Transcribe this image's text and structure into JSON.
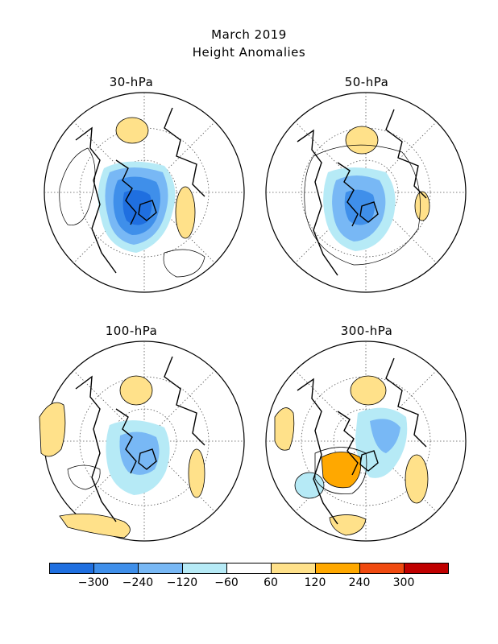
{
  "title": {
    "line1": "March 2019",
    "line2": "Height Anomalies"
  },
  "panels": [
    {
      "label": "30-hPa"
    },
    {
      "label": "50-hPa"
    },
    {
      "label": "100-hPa"
    },
    {
      "label": "300-hPa"
    }
  ],
  "colorbar": {
    "colors": [
      "#1f6fe0",
      "#3f8fea",
      "#78b8f5",
      "#b6eaf6",
      "#ffffff",
      "#ffe18a",
      "#ffa800",
      "#f04a10",
      "#c00000"
    ],
    "labels": [
      "-300",
      "-240",
      "-120",
      "-60",
      "60",
      "120",
      "240",
      "300"
    ]
  },
  "colors": {
    "negative_strong": "#3b83e6",
    "negative_mid": "#7fb5f0",
    "negative_light": "#bfe6f7",
    "positive_light": "#ffe18a",
    "positive_mid": "#ffa800"
  }
}
